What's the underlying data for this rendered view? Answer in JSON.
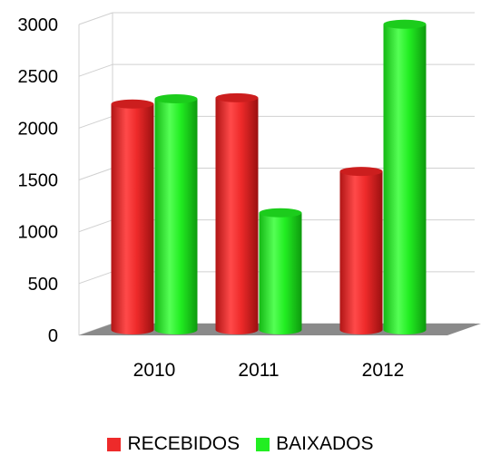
{
  "chart_data": {
    "type": "bar",
    "categories": [
      "2010",
      "2011",
      "2012"
    ],
    "series": [
      {
        "name": "RECEBIDOS",
        "values": [
          2180,
          2240,
          1530
        ],
        "color": "#ee2a2a"
      },
      {
        "name": "BAIXADOS",
        "values": [
          2230,
          1130,
          2950
        ],
        "color": "#22ee22"
      }
    ],
    "ylim": [
      0,
      3000
    ],
    "yticks": [
      "0",
      "500",
      "1000",
      "1500",
      "2000",
      "2500",
      "3000"
    ],
    "grid": true,
    "style": "3d-cylinder",
    "legend_position": "bottom"
  }
}
